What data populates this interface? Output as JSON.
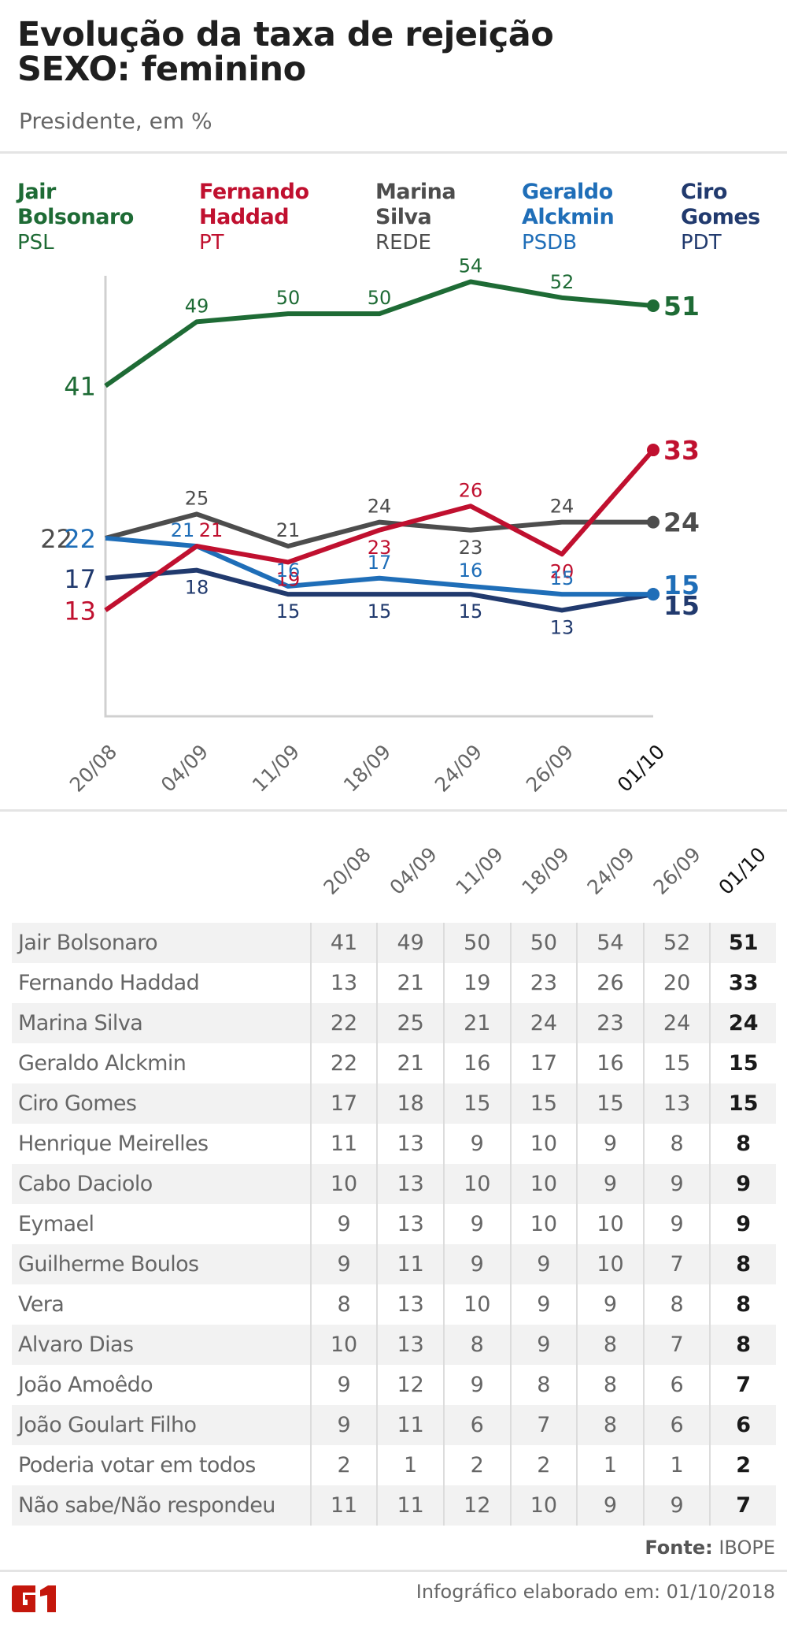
{
  "header": {
    "title_line1": "Evolução da taxa de rejeição",
    "title_line2": "SEXO: feminino",
    "subtitle": "Presidente, em %"
  },
  "legend": [
    {
      "name_line1": "Jair",
      "name_line2": "Bolsonaro",
      "party": "PSL",
      "color": "#1e6b35"
    },
    {
      "name_line1": "Fernando",
      "name_line2": "Haddad",
      "party": "PT",
      "color": "#c0102f"
    },
    {
      "name_line1": "Marina",
      "name_line2": "Silva",
      "party": "REDE",
      "color": "#4d4d4d"
    },
    {
      "name_line1": "Geraldo",
      "name_line2": "Alckmin",
      "party": "PSDB",
      "color": "#1f6eb8"
    },
    {
      "name_line1": "Ciro",
      "name_line2": "Gomes",
      "party": "PDT",
      "color": "#213a6e"
    }
  ],
  "chart_data": {
    "type": "line",
    "title": "Evolução da taxa de rejeição - SEXO: feminino",
    "subtitle": "Presidente, em %",
    "xlabel": "",
    "ylabel": "%",
    "x": [
      "20/08",
      "04/09",
      "11/09",
      "18/09",
      "24/09",
      "26/09",
      "01/10"
    ],
    "series": [
      {
        "name": "Jair Bolsonaro",
        "party": "PSL",
        "color": "#1e6b35",
        "values": [
          41,
          49,
          50,
          50,
          54,
          52,
          51
        ]
      },
      {
        "name": "Fernando Haddad",
        "party": "PT",
        "color": "#c0102f",
        "values": [
          13,
          21,
          19,
          23,
          26,
          20,
          33
        ]
      },
      {
        "name": "Marina Silva",
        "party": "REDE",
        "color": "#4d4d4d",
        "values": [
          22,
          25,
          21,
          24,
          23,
          24,
          24
        ]
      },
      {
        "name": "Geraldo Alckmin",
        "party": "PSDB",
        "color": "#1f6eb8",
        "values": [
          22,
          21,
          16,
          17,
          16,
          15,
          15
        ]
      },
      {
        "name": "Ciro Gomes",
        "party": "PDT",
        "color": "#213a6e",
        "values": [
          17,
          18,
          15,
          15,
          15,
          13,
          15
        ]
      }
    ],
    "grid": false,
    "legend": "top"
  },
  "table": {
    "columns": [
      "20/08",
      "04/09",
      "11/09",
      "18/09",
      "24/09",
      "26/09",
      "01/10"
    ],
    "rows": [
      {
        "name": "Jair Bolsonaro",
        "values": [
          41,
          49,
          50,
          50,
          54,
          52,
          51
        ]
      },
      {
        "name": "Fernando Haddad",
        "values": [
          13,
          21,
          19,
          23,
          26,
          20,
          33
        ]
      },
      {
        "name": "Marina Silva",
        "values": [
          22,
          25,
          21,
          24,
          23,
          24,
          24
        ]
      },
      {
        "name": "Geraldo Alckmin",
        "values": [
          22,
          21,
          16,
          17,
          16,
          15,
          15
        ]
      },
      {
        "name": "Ciro Gomes",
        "values": [
          17,
          18,
          15,
          15,
          15,
          13,
          15
        ]
      },
      {
        "name": "Henrique Meirelles",
        "values": [
          11,
          13,
          9,
          10,
          9,
          8,
          8
        ]
      },
      {
        "name": "Cabo Daciolo",
        "values": [
          10,
          13,
          10,
          10,
          9,
          9,
          9
        ]
      },
      {
        "name": "Eymael",
        "values": [
          9,
          13,
          9,
          10,
          10,
          9,
          9
        ]
      },
      {
        "name": "Guilherme Boulos",
        "values": [
          9,
          11,
          9,
          9,
          10,
          7,
          8
        ]
      },
      {
        "name": "Vera",
        "values": [
          8,
          13,
          10,
          9,
          9,
          8,
          8
        ]
      },
      {
        "name": "Alvaro Dias",
        "values": [
          10,
          13,
          8,
          9,
          8,
          7,
          8
        ]
      },
      {
        "name": "João Amoêdo",
        "values": [
          9,
          12,
          9,
          8,
          8,
          6,
          7
        ]
      },
      {
        "name": "João Goulart Filho",
        "values": [
          9,
          11,
          6,
          7,
          8,
          6,
          6
        ]
      },
      {
        "name": "Poderia votar em todos",
        "values": [
          2,
          1,
          2,
          2,
          1,
          1,
          2
        ]
      },
      {
        "name": "Não sabe/Não respondeu",
        "values": [
          11,
          11,
          12,
          10,
          9,
          9,
          7
        ]
      }
    ]
  },
  "footer": {
    "source_label": "Fonte:",
    "source_value": "IBOPE",
    "logo_text": "G1",
    "logo_color": "#c4170c",
    "credit": "Infográfico elaborado em: 01/10/2018"
  }
}
